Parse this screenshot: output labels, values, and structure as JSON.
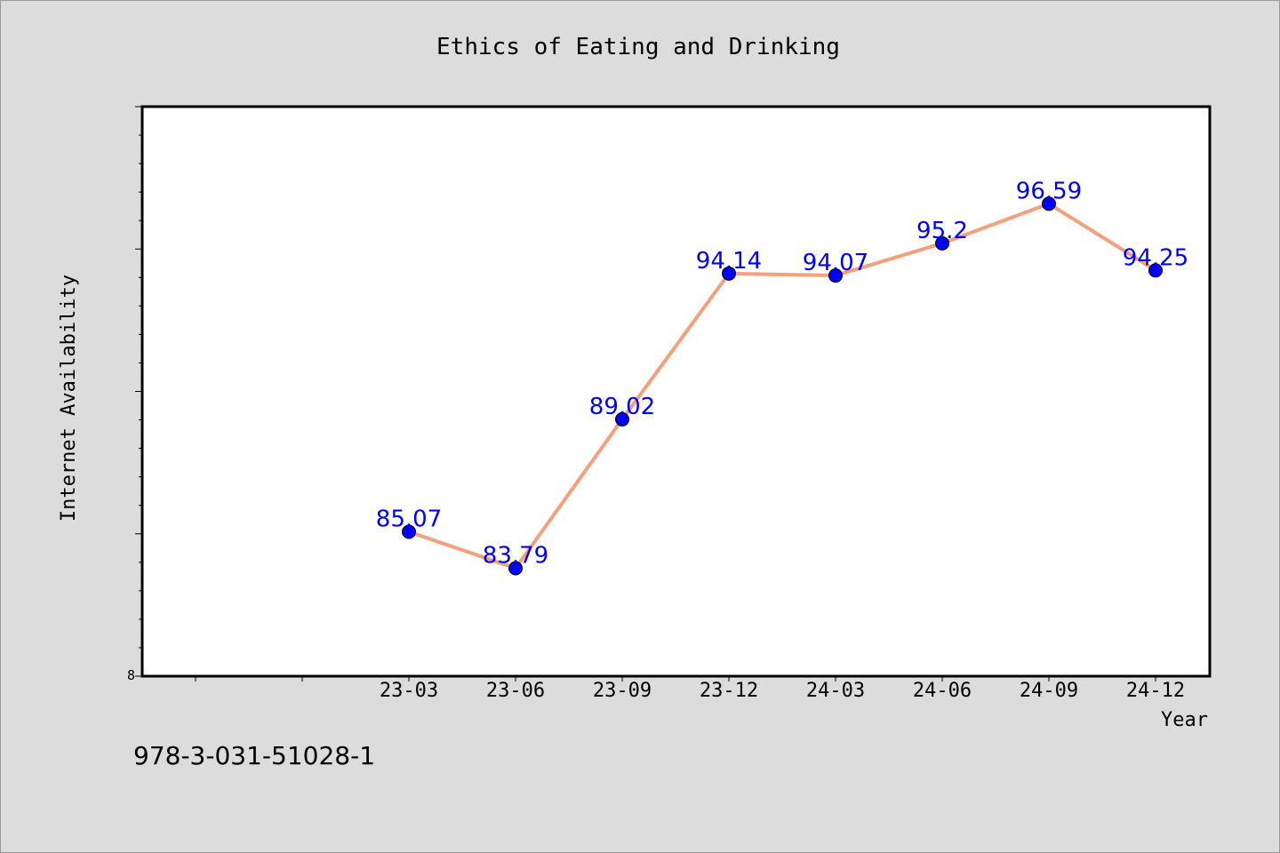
{
  "chart_data": {
    "type": "line",
    "title": "Ethics of Eating and Drinking",
    "xlabel": "Year",
    "ylabel": "Internet Availability",
    "categories": [
      "23-03",
      "23-06",
      "23-09",
      "23-12",
      "24-03",
      "24-06",
      "24-09",
      "24-12"
    ],
    "series": [
      {
        "values": [
          85.07,
          83.79,
          89.02,
          94.14,
          94.07,
          95.2,
          96.59,
          94.25
        ]
      }
    ],
    "data_labels": [
      "85.07",
      "83.79",
      "89.02",
      "94.14",
      "94.07",
      "95.2",
      "96.59",
      "94.25"
    ],
    "ylim": [
      80,
      100
    ],
    "y_tick_labels": [
      "8"
    ],
    "grid": false,
    "legend": "none",
    "colors": {
      "line": "#f4a07c",
      "marker": "#0000ff",
      "data_label": "#0000ff",
      "plot_background": "#ffffff",
      "page_background": "#dcdcdc"
    }
  },
  "footer": {
    "identifier": "978-3-031-51028-1"
  }
}
